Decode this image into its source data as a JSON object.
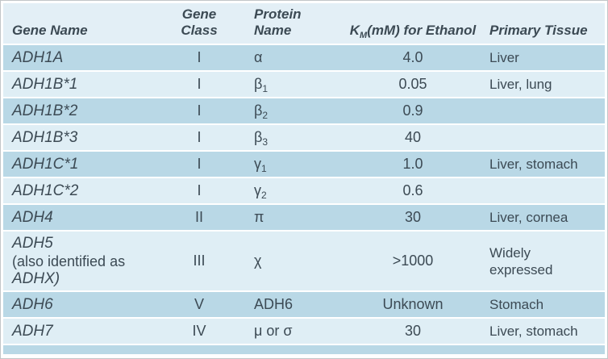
{
  "colors": {
    "row-dark": "#b9d8e6",
    "row-light": "#dfeef5",
    "header-bg": "#e3eff6",
    "text": "#3c4a54",
    "separator": "#ffffff",
    "outer-border": "#c2c6c8"
  },
  "headers": {
    "gene_name": "Gene Name",
    "gene_class_line1": "Gene",
    "gene_class_line2": "Class",
    "protein_line1": "Protein",
    "protein_line2": "Name",
    "km_k": "K",
    "km_sub": "M",
    "km_rest": "(mM) for Ethanol",
    "primary_tissue": "Primary Tissue"
  },
  "rows": [
    {
      "gene": "ADH1A",
      "gene_class": "I",
      "protein_base": "α",
      "protein_sub": "",
      "km": "4.0",
      "tissue": "Liver"
    },
    {
      "gene": "ADH1B*1",
      "gene_class": "I",
      "protein_base": "β",
      "protein_sub": "1",
      "km": "0.05",
      "tissue": "Liver, lung"
    },
    {
      "gene": "ADH1B*2",
      "gene_class": "I",
      "protein_base": "β",
      "protein_sub": "2",
      "km": "0.9",
      "tissue": ""
    },
    {
      "gene": "ADH1B*3",
      "gene_class": "I",
      "protein_base": "β",
      "protein_sub": "3",
      "km": "40",
      "tissue": ""
    },
    {
      "gene": "ADH1C*1",
      "gene_class": "I",
      "protein_base": "γ",
      "protein_sub": "1",
      "km": "1.0",
      "tissue": "Liver, stomach"
    },
    {
      "gene": "ADH1C*2",
      "gene_class": "I",
      "protein_base": "γ",
      "protein_sub": "2",
      "km": "0.6",
      "tissue": ""
    },
    {
      "gene": "ADH4",
      "gene_class": "II",
      "protein_base": "π",
      "protein_sub": "",
      "km": "30",
      "tissue": "Liver, cornea"
    },
    {
      "gene": "ADH5",
      "gene_note_line1": "(also identified as",
      "gene_note_line2": "ADHX)",
      "gene_class": "III",
      "protein_base": "χ",
      "protein_sub": "",
      "km": ">1000",
      "tissue": "Widely expressed"
    },
    {
      "gene": "ADH6",
      "gene_class": "V",
      "protein_base": "ADH6",
      "protein_sub": "",
      "km": "Unknown",
      "tissue": "Stomach"
    },
    {
      "gene": "ADH7",
      "gene_class": "IV",
      "protein_base": "μ or σ",
      "protein_sub": "",
      "km": "30",
      "tissue": "Liver, stomach"
    }
  ]
}
